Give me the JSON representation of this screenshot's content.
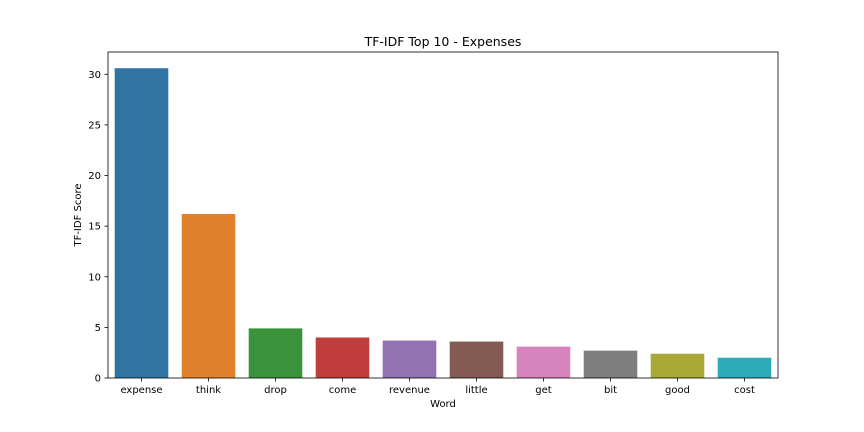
{
  "chart_data": {
    "type": "bar",
    "title": "TF-IDF Top 10 - Expenses",
    "xlabel": "Word",
    "ylabel": "TF-IDF Score",
    "categories": [
      "expense",
      "think",
      "drop",
      "come",
      "revenue",
      "little",
      "get",
      "bit",
      "good",
      "cost"
    ],
    "values": [
      30.6,
      16.2,
      4.9,
      4.0,
      3.7,
      3.6,
      3.1,
      2.7,
      2.4,
      2.0
    ],
    "colors": [
      "#3274a1",
      "#e1812c",
      "#3a923a",
      "#c03d3e",
      "#9372b2",
      "#845b53",
      "#d684bd",
      "#7f7f7f",
      "#a9aa35",
      "#2eabb8"
    ],
    "yticks": [
      "0",
      "5",
      "10",
      "15",
      "20",
      "25",
      "30"
    ],
    "ylim": [
      0,
      32.2
    ],
    "grid": false,
    "legend": "none"
  }
}
